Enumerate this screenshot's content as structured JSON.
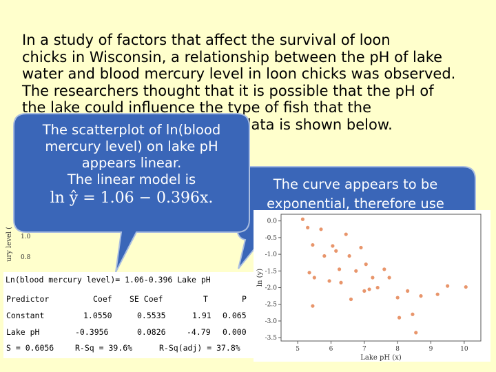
{
  "intro": {
    "lines": [
      "In a study of factors that affect the survival of loon",
      "chicks in Wisconsin, a relationship between the pH of lake",
      "water and blood mercury level in loon chicks was observed.",
      "The researchers thought that it is possible that the pH of",
      "the lake could influence the type of fish that the",
      "loons ate. A scatterplot of the data is shown below."
    ]
  },
  "callout_linear": {
    "lines": [
      "The scatterplot of ln(blood",
      "mercury level) on lake pH",
      "appears linear.",
      "The linear model is"
    ],
    "equation": "ln ŷ = 1.06 − 0.396x."
  },
  "callout_exponential": {
    "lines": [
      "The curve appears to be",
      "exponential, therefore use"
    ]
  },
  "background_plot": {
    "ylabel": "ury level (y)",
    "ticks": [
      "1.0",
      "0.8"
    ]
  },
  "regression_output": {
    "equation": "Ln(blood mercury level)= 1.06-0.396 Lake pH",
    "headers": [
      "Predictor",
      "Coef",
      "SE Coef",
      "T",
      "P"
    ],
    "rows": [
      [
        "Constant",
        "1.0550",
        "0.5535",
        "1.91",
        "0.065"
      ],
      [
        "Lake pH",
        "-0.3956",
        "0.0826",
        "-4.79",
        "0.000"
      ]
    ],
    "summary": {
      "s": "S = 0.6056",
      "rsq": "R-Sq = 39.6%",
      "rsq_adj": "R-Sq(adj) = 37.8%"
    }
  },
  "chart_data": {
    "type": "scatter",
    "xlabel": "Lake pH (x)",
    "ylabel": "ln (y)",
    "xlim": [
      4.5,
      10.5
    ],
    "ylim": [
      -3.6,
      0.2
    ],
    "xticks": [
      5,
      6,
      7,
      8,
      9,
      10
    ],
    "yticks": [
      0.0,
      -0.5,
      -1.0,
      -1.5,
      -2.0,
      -2.5,
      -3.0,
      -3.5
    ],
    "color": "#e8956b",
    "points": [
      {
        "x": 5.15,
        "y": 0.05
      },
      {
        "x": 5.3,
        "y": -0.2
      },
      {
        "x": 5.7,
        "y": -0.25
      },
      {
        "x": 6.05,
        "y": -0.75
      },
      {
        "x": 6.15,
        "y": -0.9
      },
      {
        "x": 6.45,
        "y": -0.4
      },
      {
        "x": 5.45,
        "y": -0.72
      },
      {
        "x": 5.8,
        "y": -1.05
      },
      {
        "x": 6.25,
        "y": -1.45
      },
      {
        "x": 6.55,
        "y": -1.05
      },
      {
        "x": 6.9,
        "y": -0.8
      },
      {
        "x": 7.05,
        "y": -1.3
      },
      {
        "x": 7.25,
        "y": -1.7
      },
      {
        "x": 5.35,
        "y": -1.55
      },
      {
        "x": 5.5,
        "y": -1.7
      },
      {
        "x": 5.95,
        "y": -1.8
      },
      {
        "x": 6.3,
        "y": -1.85
      },
      {
        "x": 7.0,
        "y": -2.1
      },
      {
        "x": 7.15,
        "y": -2.05
      },
      {
        "x": 7.75,
        "y": -1.7
      },
      {
        "x": 8.0,
        "y": -2.3
      },
      {
        "x": 8.05,
        "y": -2.9
      },
      {
        "x": 8.3,
        "y": -2.1
      },
      {
        "x": 8.45,
        "y": -2.8
      },
      {
        "x": 8.55,
        "y": -3.35
      },
      {
        "x": 8.7,
        "y": -2.25
      },
      {
        "x": 9.2,
        "y": -2.2
      },
      {
        "x": 9.5,
        "y": -1.95
      },
      {
        "x": 10.05,
        "y": -1.98
      },
      {
        "x": 6.75,
        "y": -1.5
      },
      {
        "x": 7.4,
        "y": -2.0
      },
      {
        "x": 6.6,
        "y": -2.35
      },
      {
        "x": 5.45,
        "y": -2.55
      },
      {
        "x": 7.6,
        "y": -1.45
      }
    ]
  }
}
